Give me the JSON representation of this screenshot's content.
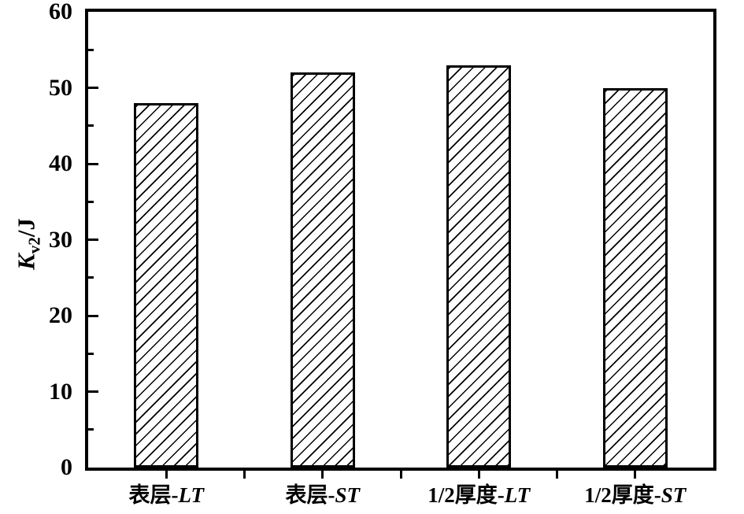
{
  "figure": {
    "background": "#ffffff",
    "line_color": "#000000"
  },
  "chart_data": {
    "type": "bar",
    "title": "",
    "categories": [
      "表层-LT",
      "表层-ST",
      "1/2厚度-LT",
      "1/2厚度-ST"
    ],
    "values": [
      48,
      52,
      53,
      50
    ],
    "xlabel": "",
    "ylabel": "Kv2/J",
    "ylabel_parts": {
      "base": "K",
      "subscript": "v2",
      "suffix": "/J"
    },
    "ylim": [
      0,
      60
    ],
    "yticks": [
      0,
      10,
      20,
      30,
      40,
      50,
      60
    ],
    "ytick_step": 10,
    "yminor_step": 5,
    "grid": false,
    "legend": false,
    "frame": "full-box",
    "bar_fill": "#ffffff",
    "bar_edge_color": "#000000",
    "bar_hatch": "forward-diagonal"
  }
}
